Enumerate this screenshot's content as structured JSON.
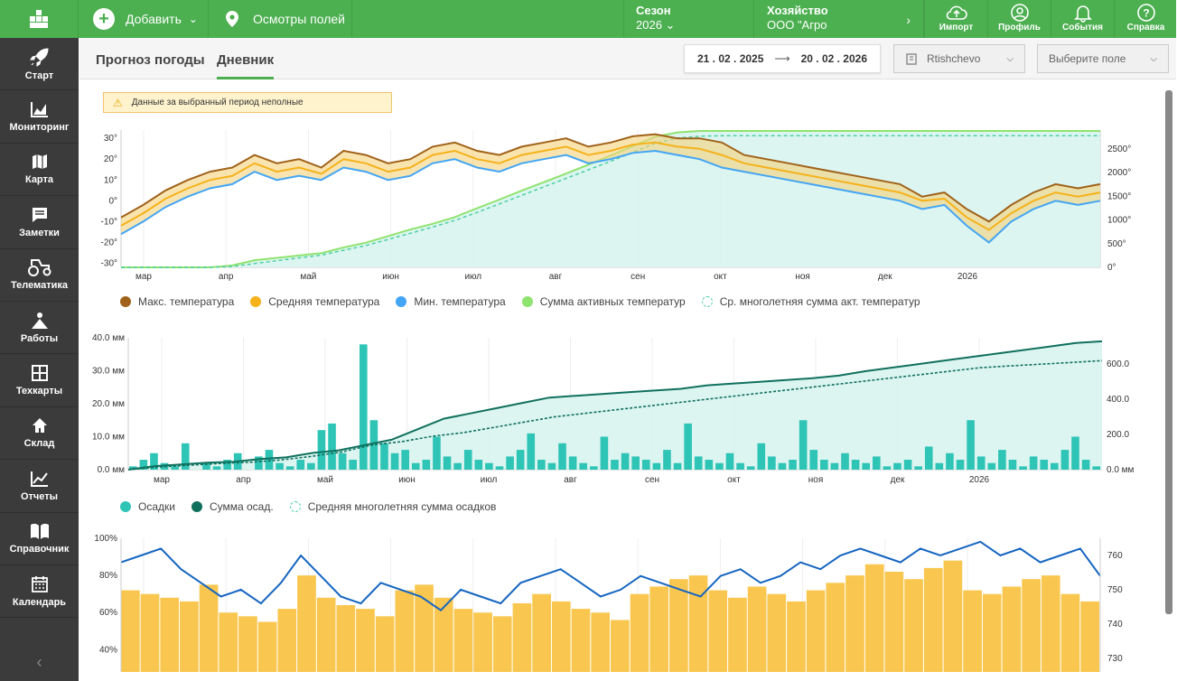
{
  "topbar": {
    "add_label": "Добавить",
    "fields_label": "Осмотры полей",
    "season_label": "Сезон",
    "season_value": "2026",
    "farm_label": "Хозяйство",
    "farm_value": "ООО \"Агро",
    "import": "Импорт",
    "profile": "Профиль",
    "events": "События",
    "help": "Справка"
  },
  "sidebar": {
    "items": [
      {
        "label": "Старт",
        "icon": "rocket-icon"
      },
      {
        "label": "Мониторинг",
        "icon": "chart-area-icon"
      },
      {
        "label": "Карта",
        "icon": "map-icon"
      },
      {
        "label": "Заметки",
        "icon": "note-icon"
      },
      {
        "label": "Телематика",
        "icon": "tractor-icon"
      },
      {
        "label": "Работы",
        "icon": "works-icon"
      },
      {
        "label": "Техкарты",
        "icon": "grid-icon"
      },
      {
        "label": "Склад",
        "icon": "house-icon"
      },
      {
        "label": "Отчеты",
        "icon": "report-icon"
      },
      {
        "label": "Справочник",
        "icon": "book-icon"
      },
      {
        "label": "Календарь",
        "icon": "calendar-icon"
      }
    ]
  },
  "tabs": {
    "weather": "Прогноз погоды",
    "diary": "Дневник"
  },
  "date_from": "21 . 02 . 2025",
  "date_to": "20 . 02 . 2026",
  "station_select": "Rtishchevo",
  "field_select": "Выберите поле",
  "warning": "Данные за выбранный период неполные",
  "months": [
    "мар",
    "апр",
    "май",
    "июн",
    "июл",
    "авг",
    "сен",
    "окт",
    "ноя",
    "дек",
    "2026"
  ],
  "colors": {
    "green": "#4caf50",
    "tmax": "#a0621a",
    "tavg": "#f5b21b",
    "tmin": "#42a5f5",
    "gdd": "#8fe36f",
    "precip": "#2ec4b6",
    "precip_sum": "#10705e",
    "humidity": "#f9c74f",
    "pressure": "#1565c0"
  },
  "chart_data": [
    {
      "type": "line",
      "ylabel_left_ticks": [
        "30°",
        "20°",
        "10°",
        "0°",
        "-10°",
        "-20°",
        "-30°"
      ],
      "ylabel_right_ticks": [
        "2500°",
        "2000°",
        "1500°",
        "1000°",
        "500°",
        "0°"
      ],
      "ylim": [
        -32,
        34
      ],
      "ylim_right": [
        0,
        2900
      ],
      "x_ticks": [
        "мар",
        "апр",
        "май",
        "июн",
        "июл",
        "авг",
        "сен",
        "окт",
        "ноя",
        "дек",
        "2026"
      ],
      "legend": [
        "Макс. температура",
        "Средняя температура",
        "Мин. температура",
        "Сумма активных температур",
        "Ср. многолетняя сумма акт. температур"
      ],
      "series": [
        {
          "name": "Макс. температура",
          "values": [
            -8,
            -2,
            5,
            10,
            14,
            16,
            22,
            18,
            20,
            16,
            24,
            22,
            18,
            20,
            26,
            28,
            24,
            22,
            26,
            28,
            30,
            26,
            28,
            31,
            32,
            30,
            30,
            28,
            22,
            20,
            18,
            16,
            14,
            12,
            10,
            8,
            2,
            4,
            -4,
            -10,
            -2,
            4,
            8,
            6,
            8
          ]
        },
        {
          "name": "Средняя температура",
          "values": [
            -12,
            -6,
            1,
            6,
            10,
            12,
            18,
            14,
            16,
            13,
            20,
            18,
            14,
            16,
            22,
            24,
            20,
            18,
            22,
            24,
            26,
            22,
            24,
            27,
            28,
            26,
            25,
            22,
            18,
            16,
            14,
            12,
            10,
            8,
            6,
            4,
            0,
            1,
            -8,
            -14,
            -6,
            0,
            4,
            2,
            4
          ]
        },
        {
          "name": "Мин. температура",
          "values": [
            -16,
            -10,
            -3,
            2,
            6,
            8,
            14,
            10,
            12,
            10,
            16,
            14,
            10,
            12,
            18,
            20,
            16,
            14,
            18,
            20,
            22,
            18,
            20,
            23,
            24,
            22,
            20,
            16,
            14,
            12,
            10,
            8,
            6,
            4,
            2,
            0,
            -4,
            -2,
            -12,
            -20,
            -10,
            -4,
            0,
            -2,
            0
          ]
        },
        {
          "name": "Сумма активных температур",
          "values": [
            0,
            0,
            0,
            0,
            0,
            40,
            150,
            200,
            250,
            300,
            420,
            520,
            660,
            800,
            920,
            1060,
            1250,
            1430,
            1620,
            1800,
            1980,
            2170,
            2360,
            2560,
            2760,
            2850,
            2880,
            2880,
            2880,
            2880,
            2880,
            2880,
            2880,
            2880,
            2880,
            2880,
            2880,
            2880,
            2880,
            2880,
            2880,
            2880,
            2880,
            2880,
            2880
          ]
        },
        {
          "name": "Ср. многолетняя сумма акт. температур",
          "values": [
            0,
            0,
            0,
            0,
            0,
            20,
            80,
            140,
            200,
            260,
            360,
            460,
            590,
            720,
            850,
            990,
            1160,
            1340,
            1520,
            1700,
            1880,
            2060,
            2240,
            2430,
            2620,
            2730,
            2770,
            2780,
            2780,
            2780,
            2780,
            2780,
            2780,
            2780,
            2780,
            2780,
            2780,
            2780,
            2780,
            2780,
            2780,
            2780,
            2780,
            2780,
            2780
          ]
        }
      ]
    },
    {
      "type": "bar",
      "ylabel_left_ticks": [
        "40.0 мм",
        "30.0 мм",
        "20.0 мм",
        "10.0 мм",
        "0.0 мм"
      ],
      "ylabel_right_ticks": [
        "600.0",
        "400.0",
        "200.0",
        "0.0 мм"
      ],
      "ylim": [
        0,
        40
      ],
      "ylim_right": [
        0,
        750
      ],
      "x_ticks": [
        "мар",
        "апр",
        "май",
        "июн",
        "июл",
        "авг",
        "сен",
        "окт",
        "ноя",
        "дек",
        "2026"
      ],
      "legend": [
        "Осадки",
        "Сумма осад.",
        "Средняя многолетняя сумма осадков"
      ],
      "series": [
        {
          "name": "Осадки",
          "values": [
            1,
            3,
            5,
            2,
            1,
            8,
            0,
            2,
            1,
            3,
            5,
            0,
            4,
            6,
            2,
            1,
            3,
            2,
            12,
            14,
            5,
            3,
            38,
            15,
            8,
            5,
            6,
            2,
            3,
            10,
            4,
            2,
            6,
            3,
            2,
            1,
            4,
            6,
            11,
            3,
            2,
            8,
            4,
            2,
            1,
            10,
            3,
            5,
            4,
            3,
            2,
            6,
            2,
            14,
            4,
            3,
            2,
            5,
            2,
            1,
            8,
            4,
            2,
            3,
            15,
            6,
            3,
            2,
            5,
            3,
            2,
            4,
            1,
            2,
            3,
            1,
            7,
            2,
            5,
            3,
            15,
            4,
            2,
            6,
            3,
            1,
            4,
            3,
            2,
            6,
            10,
            3,
            1
          ]
        },
        {
          "name": "Сумма осад.",
          "values": [
            0,
            20,
            30,
            40,
            45,
            60,
            70,
            95,
            110,
            140,
            170,
            230,
            290,
            320,
            350,
            380,
            410,
            420,
            430,
            440,
            450,
            460,
            480,
            490,
            500,
            510,
            520,
            535,
            560,
            580,
            600,
            620,
            640,
            660,
            680,
            700,
            720,
            730
          ]
        },
        {
          "name": "Средняя многолетняя сумма осадков",
          "values": [
            0,
            15,
            25,
            35,
            42,
            55,
            75,
            100,
            140,
            160,
            190,
            210,
            240,
            270,
            300,
            320,
            340,
            360,
            380,
            400,
            420,
            440,
            460,
            480,
            500,
            520,
            540,
            560,
            580,
            590,
            600,
            610,
            620
          ]
        }
      ]
    },
    {
      "type": "bar",
      "ylabel_left_ticks": [
        "100%",
        "80%",
        "60%",
        "40%"
      ],
      "ylabel_right_ticks": [
        "760",
        "750",
        "740",
        "730"
      ],
      "ylim": [
        28,
        100
      ],
      "ylim_right": [
        726,
        765
      ],
      "series": [
        {
          "name": "humidity",
          "values": [
            72,
            70,
            68,
            66,
            75,
            60,
            58,
            55,
            62,
            80,
            68,
            64,
            62,
            58,
            72,
            75,
            68,
            62,
            60,
            58,
            65,
            70,
            66,
            62,
            60,
            56,
            70,
            74,
            78,
            80,
            72,
            68,
            74,
            70,
            66,
            72,
            76,
            80,
            86,
            82,
            78,
            84,
            88,
            72,
            70,
            74,
            78,
            80,
            70,
            66
          ]
        },
        {
          "name": "pressure",
          "values": [
            758,
            760,
            762,
            756,
            752,
            748,
            750,
            746,
            752,
            760,
            754,
            748,
            746,
            752,
            750,
            748,
            744,
            750,
            748,
            746,
            752,
            754,
            756,
            752,
            748,
            750,
            754,
            752,
            750,
            748,
            754,
            756,
            752,
            754,
            758,
            756,
            760,
            762,
            760,
            758,
            762,
            760,
            762,
            764,
            760,
            762,
            758,
            760,
            762,
            754
          ]
        }
      ]
    }
  ]
}
